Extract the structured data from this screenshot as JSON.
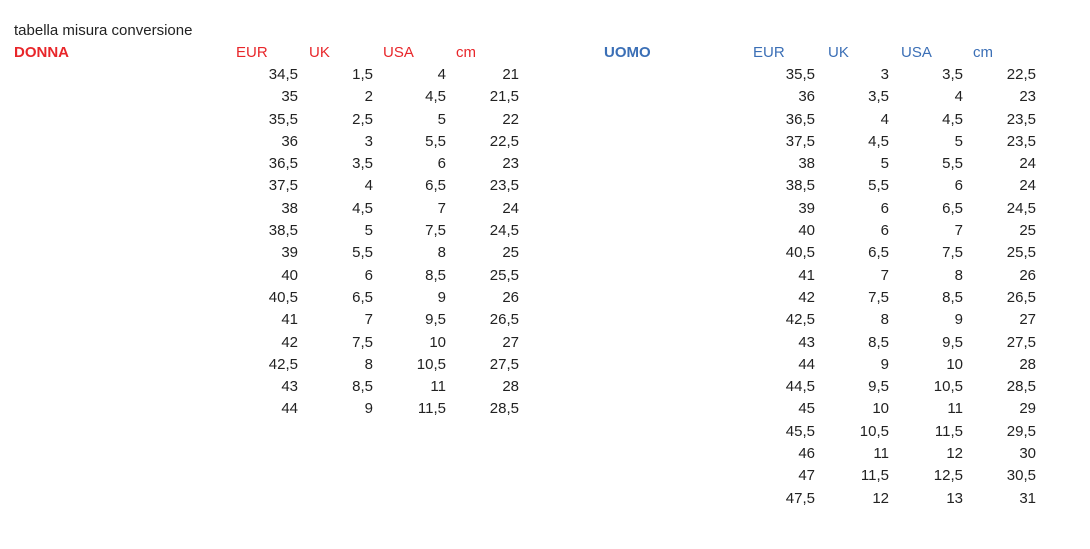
{
  "title": "tabella misura conversione",
  "donna": {
    "label": "DONNA",
    "headers": [
      "EUR",
      "UK",
      "USA",
      "cm"
    ],
    "rows": [
      [
        "34,5",
        "1,5",
        "4",
        "21"
      ],
      [
        "35",
        "2",
        "4,5",
        "21,5"
      ],
      [
        "35,5",
        "2,5",
        "5",
        "22"
      ],
      [
        "36",
        "3",
        "5,5",
        "22,5"
      ],
      [
        "36,5",
        "3,5",
        "6",
        "23"
      ],
      [
        "37,5",
        "4",
        "6,5",
        "23,5"
      ],
      [
        "38",
        "4,5",
        "7",
        "24"
      ],
      [
        "38,5",
        "5",
        "7,5",
        "24,5"
      ],
      [
        "39",
        "5,5",
        "8",
        "25"
      ],
      [
        "40",
        "6",
        "8,5",
        "25,5"
      ],
      [
        "40,5",
        "6,5",
        "9",
        "26"
      ],
      [
        "41",
        "7",
        "9,5",
        "26,5"
      ],
      [
        "42",
        "7,5",
        "10",
        "27"
      ],
      [
        "42,5",
        "8",
        "10,5",
        "27,5"
      ],
      [
        "43",
        "8,5",
        "11",
        "28"
      ],
      [
        "44",
        "9",
        "11,5",
        "28,5"
      ]
    ]
  },
  "uomo": {
    "label": "UOMO",
    "headers": [
      "EUR",
      "UK",
      "USA",
      "cm"
    ],
    "rows": [
      [
        "35,5",
        "3",
        "3,5",
        "22,5"
      ],
      [
        "36",
        "3,5",
        "4",
        "23"
      ],
      [
        "36,5",
        "4",
        "4,5",
        "23,5"
      ],
      [
        "37,5",
        "4,5",
        "5",
        "23,5"
      ],
      [
        "38",
        "5",
        "5,5",
        "24"
      ],
      [
        "38,5",
        "5,5",
        "6",
        "24"
      ],
      [
        "39",
        "6",
        "6,5",
        "24,5"
      ],
      [
        "40",
        "6",
        "7",
        "25"
      ],
      [
        "40,5",
        "6,5",
        "7,5",
        "25,5"
      ],
      [
        "41",
        "7",
        "8",
        "26"
      ],
      [
        "42",
        "7,5",
        "8,5",
        "26,5"
      ],
      [
        "42,5",
        "8",
        "9",
        "27"
      ],
      [
        "43",
        "8,5",
        "9,5",
        "27,5"
      ],
      [
        "44",
        "9",
        "10",
        "28"
      ],
      [
        "44,5",
        "9,5",
        "10,5",
        "28,5"
      ],
      [
        "45",
        "10",
        "11",
        "29"
      ],
      [
        "45,5",
        "10,5",
        "11,5",
        "29,5"
      ],
      [
        "46",
        "11",
        "12",
        "30"
      ],
      [
        "47",
        "11,5",
        "12,5",
        "30,5"
      ],
      [
        "47,5",
        "12",
        "13",
        "31"
      ]
    ]
  }
}
